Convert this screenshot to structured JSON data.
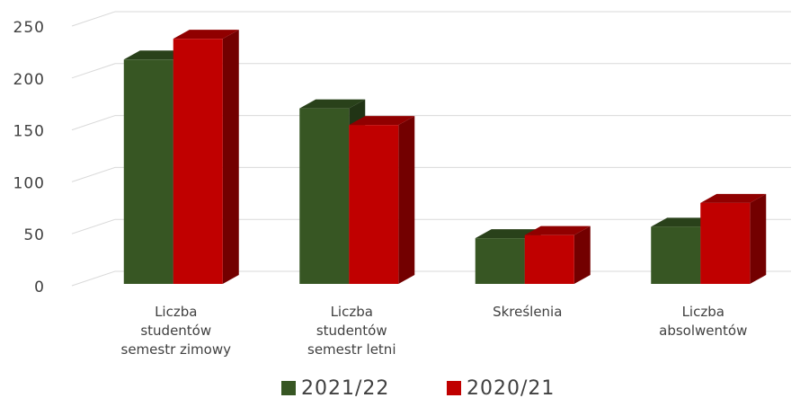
{
  "chart_data": {
    "type": "bar3d",
    "categories": [
      "Liczba\nstudentów\nsemestr zimowy",
      "Liczba\nstudentów\nsemestr letni",
      "Skreślenia",
      "Liczba\nabsolwentów"
    ],
    "series": [
      {
        "name": "2021/22",
        "color": "#375623",
        "values": [
          216,
          169,
          44,
          55
        ]
      },
      {
        "name": "2020/21",
        "color": "#c00000",
        "values": [
          236,
          153,
          47,
          78
        ]
      }
    ],
    "ylim": [
      0,
      250
    ],
    "yticks": [
      0,
      50,
      100,
      150,
      200,
      250
    ],
    "grid": true,
    "legend": "bottom"
  }
}
